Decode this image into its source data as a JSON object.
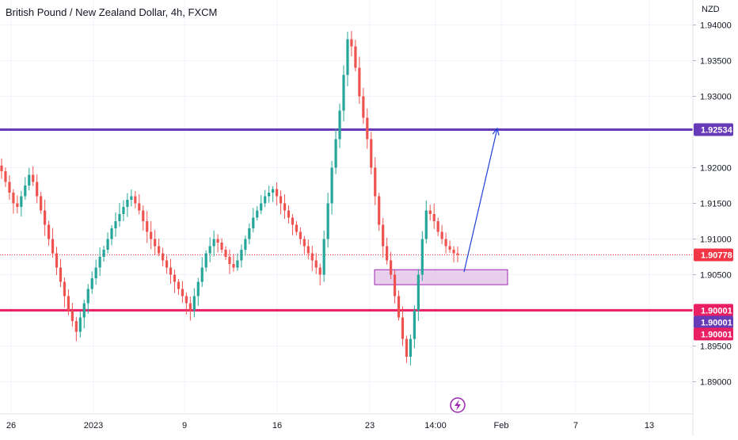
{
  "title": "British Pound / New Zealand Dollar, 4h, FXCM",
  "currency_label": "NZD",
  "colors": {
    "up": "#26a69a",
    "down": "#ef5350",
    "resistance": "#673ab7",
    "support": "#e91e63",
    "last_price": "#f23645",
    "zone_fill": "#e1bee7",
    "zone_stroke": "#9c27b0",
    "arrow": "#1e3fd8",
    "grid": "#f0f3fa",
    "axis_line": "#e0e3eb"
  },
  "chart_data": {
    "type": "candlestick",
    "title": "British Pound / New Zealand Dollar, 4h, FXCM",
    "ylabel": "NZD",
    "ylim": [
      1.8855,
      1.9435
    ],
    "y_ticks": [
      "1.94000",
      "1.93500",
      "1.93000",
      "1.92000",
      "1.91500",
      "1.91000",
      "1.90500",
      "1.89500",
      "1.89000"
    ],
    "x_ticks": [
      "26",
      "2023",
      "9",
      "16",
      "23",
      "14:00",
      "Feb",
      "7",
      "13"
    ],
    "grid": true,
    "levels": [
      {
        "label": "1.92534",
        "value": 1.92534,
        "kind": "resistance"
      },
      {
        "label": "1.90001",
        "value": 1.90001,
        "kind": "support"
      },
      {
        "label": "1.90778",
        "value": 1.90778,
        "kind": "last_price"
      }
    ],
    "zone": {
      "from_price": 1.9036,
      "to_price": 1.9057
    },
    "arrow_target": 1.9255,
    "price_series_close": [
      1.9195,
      1.918,
      1.9165,
      1.915,
      1.9145,
      1.916,
      1.9175,
      1.919,
      1.918,
      1.916,
      1.914,
      1.912,
      1.91,
      1.908,
      1.906,
      1.904,
      1.902,
      1.9,
      1.8985,
      1.897,
      1.899,
      1.901,
      1.903,
      1.9045,
      1.906,
      1.9075,
      1.9085,
      1.91,
      1.9115,
      1.9125,
      1.9135,
      1.9145,
      1.9155,
      1.916,
      1.915,
      1.914,
      1.9125,
      1.911,
      1.91,
      1.909,
      1.908,
      1.907,
      1.906,
      1.905,
      1.904,
      1.903,
      1.902,
      1.901,
      1.9,
      1.902,
      1.904,
      1.906,
      1.908,
      1.909,
      1.91,
      1.9095,
      1.9085,
      1.9075,
      1.9065,
      1.906,
      1.907,
      1.9085,
      1.91,
      1.9115,
      1.913,
      1.914,
      1.915,
      1.916,
      1.9165,
      1.917,
      1.916,
      1.915,
      1.914,
      1.913,
      1.912,
      1.911,
      1.91,
      1.909,
      1.908,
      1.907,
      1.906,
      1.905,
      1.91,
      1.915,
      1.92,
      1.924,
      1.928,
      1.933,
      1.938,
      1.937,
      1.934,
      1.93,
      1.927,
      1.924,
      1.92,
      1.916,
      1.912,
      1.909,
      1.907,
      1.905,
      1.902,
      1.899,
      1.896,
      1.8935,
      1.896,
      1.9,
      1.905,
      1.91,
      1.914,
      1.9135,
      1.9125,
      1.911,
      1.91,
      1.909,
      1.9085,
      1.908,
      1.9078
    ],
    "annotations": [
      {
        "type": "rectangle",
        "description": "demand zone"
      },
      {
        "type": "arrow",
        "description": "projection toward resistance"
      }
    ]
  },
  "price_tags": {
    "resistance": "1.92534",
    "last": "1.90778",
    "support_a": "1.90001",
    "support_b": "1.90001",
    "support_c": "1.90001"
  },
  "icons": {
    "lightning": "lightning-icon"
  }
}
